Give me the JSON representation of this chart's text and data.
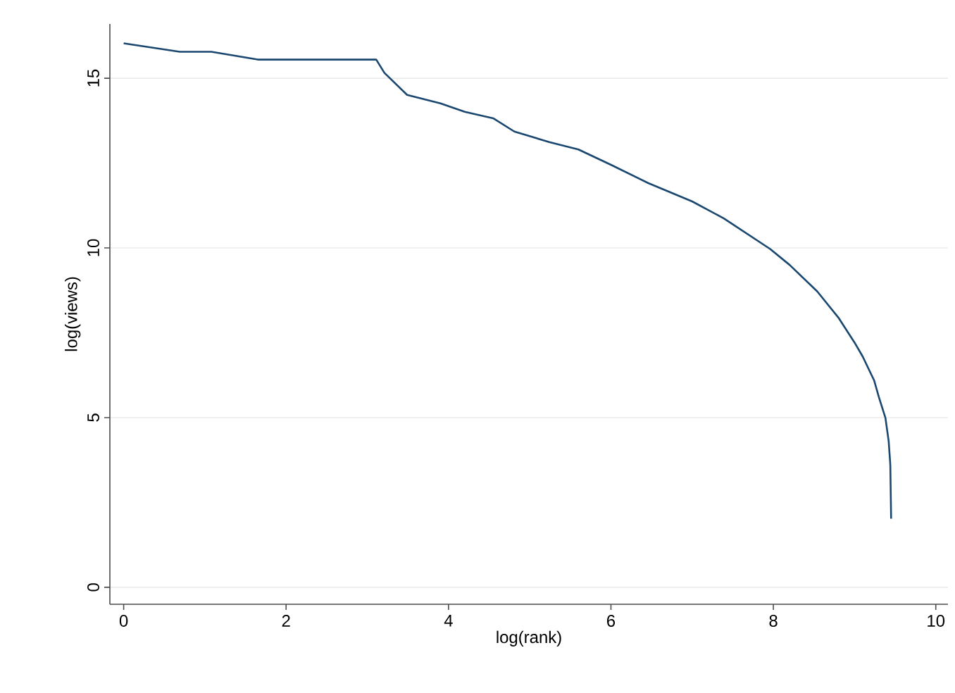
{
  "chart_data": {
    "type": "line",
    "xlabel": "log(rank)",
    "ylabel": "log(views)",
    "xlim": [
      -0.17,
      10.15
    ],
    "ylim": [
      -0.5,
      16.6
    ],
    "xticks": [
      0,
      2,
      4,
      6,
      8,
      10
    ],
    "yticks": [
      0,
      5,
      10,
      15
    ],
    "grid": "y",
    "marker": "none",
    "line_style": "solid",
    "series": [
      {
        "color": "#1a476f",
        "x": [
          0,
          0.69,
          1.08,
          1.65,
          3.11,
          3.21,
          3.49,
          3.9,
          4.2,
          4.55,
          4.81,
          5.24,
          5.6,
          6.0,
          6.46,
          7.0,
          7.39,
          7.96,
          8.2,
          8.54,
          8.8,
          9.0,
          9.1,
          9.24,
          9.3,
          9.38,
          9.42,
          9.44,
          9.45
        ],
        "values": [
          16.03,
          15.78,
          15.78,
          15.55,
          15.55,
          15.16,
          14.51,
          14.26,
          14.01,
          13.82,
          13.43,
          13.12,
          12.9,
          12.45,
          11.91,
          11.37,
          10.87,
          9.97,
          9.5,
          8.72,
          7.95,
          7.21,
          6.8,
          6.1,
          5.6,
          4.99,
          4.3,
          3.61,
          2.02
        ]
      }
    ]
  }
}
